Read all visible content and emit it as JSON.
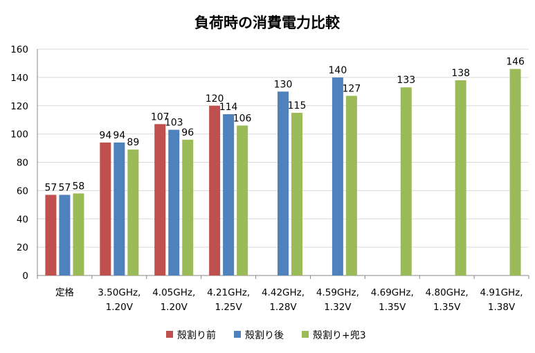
{
  "chart_data": {
    "type": "bar",
    "title": "負荷時の消費電力比較",
    "xlabel": "",
    "ylabel": "",
    "ylim": [
      0,
      160
    ],
    "yticks": [
      0,
      20,
      40,
      60,
      80,
      100,
      120,
      140,
      160
    ],
    "grid": true,
    "legend_position": "bottom",
    "categories": [
      [
        "定格"
      ],
      [
        "3.50GHz,",
        "1.20V"
      ],
      [
        "4.05GHz,",
        "1.20V"
      ],
      [
        "4.21GHz,",
        "1.25V"
      ],
      [
        "4.42GHz,",
        "1.28V"
      ],
      [
        "4.59GHz,",
        "1.32V"
      ],
      [
        "4.69GHz,",
        "1.35V"
      ],
      [
        "4.80GHz,",
        "1.35V"
      ],
      [
        "4.91GHz,",
        "1.38V"
      ]
    ],
    "series": [
      {
        "name": "殻割り前",
        "color": "#c0504d",
        "values": [
          57,
          94,
          107,
          120,
          null,
          null,
          null,
          null,
          null
        ]
      },
      {
        "name": "殻割り後",
        "color": "#4f81bd",
        "values": [
          57,
          94,
          103,
          114,
          130,
          140,
          null,
          null,
          null
        ]
      },
      {
        "name": "殻割り+兜3",
        "color": "#9bbb59",
        "values": [
          58,
          89,
          96,
          106,
          115,
          127,
          133,
          138,
          146
        ]
      }
    ]
  }
}
